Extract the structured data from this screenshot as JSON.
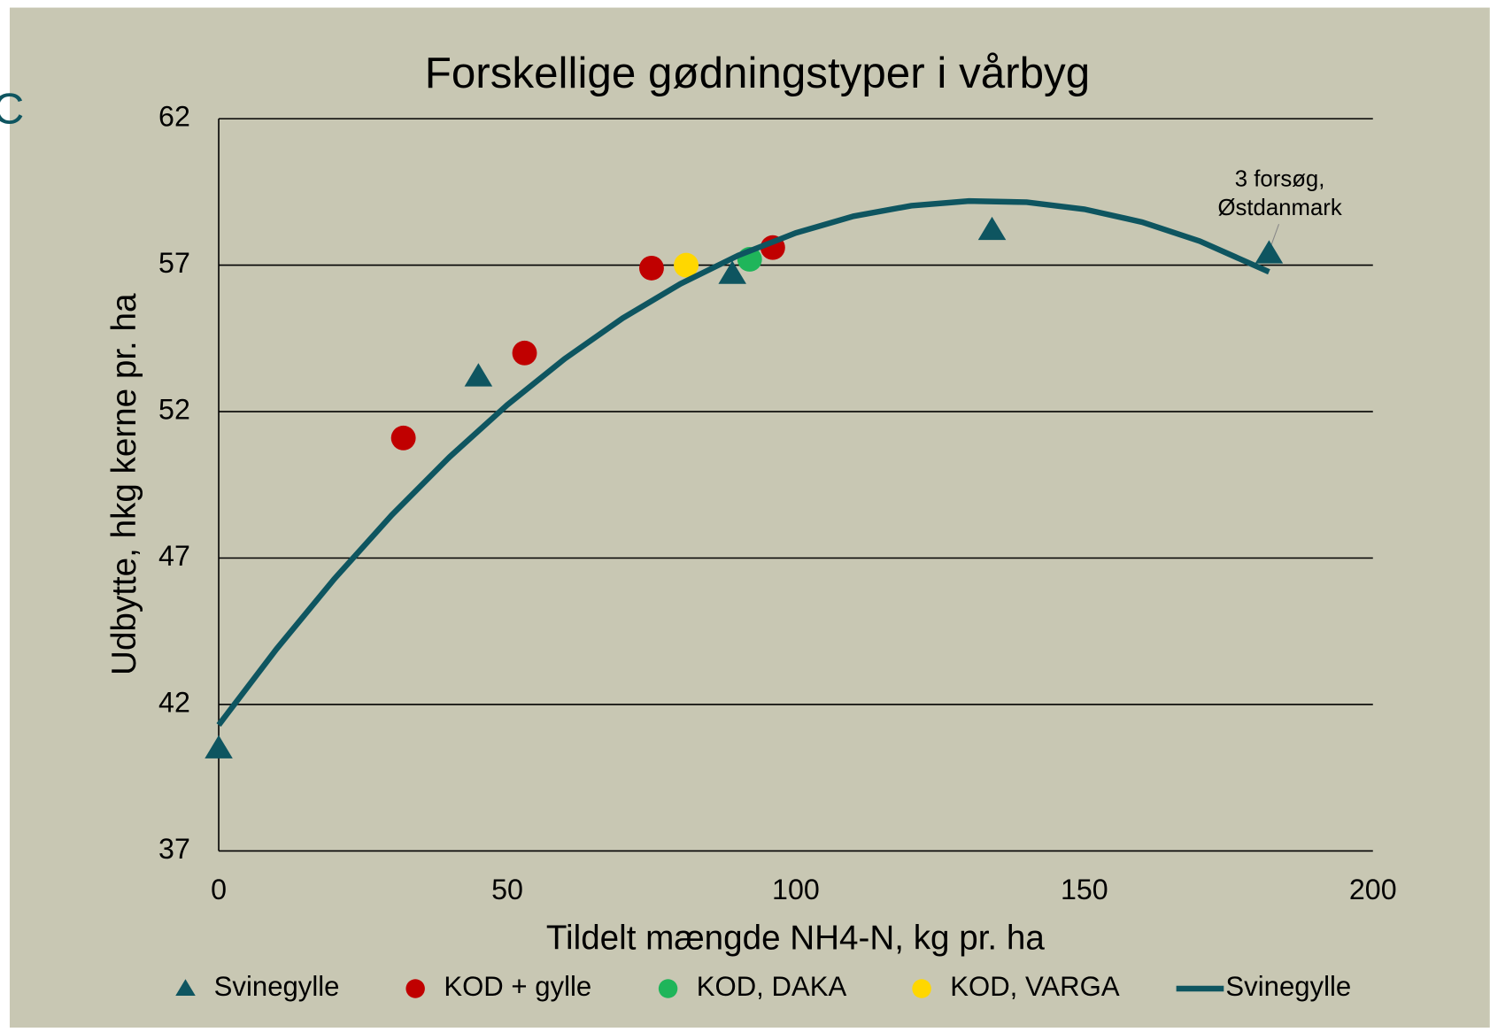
{
  "chart_data": {
    "type": "scatter",
    "title": "Forskellige gødningstyper i vårbyg",
    "x_label": "Tildelt mængde NH4-N, kg pr. ha",
    "y_label": "Udbytte, hkg kerne pr. ha",
    "annotation": [
      "3 forsøg,",
      "Østdanmark"
    ],
    "background_text": "C",
    "xlim": [
      0,
      200
    ],
    "xticks": [
      0,
      50,
      100,
      150,
      200
    ],
    "ylim": [
      37,
      62
    ],
    "yticks": [
      37,
      42,
      47,
      52,
      57,
      62
    ],
    "grid": true,
    "legend": "bottom",
    "series": [
      {
        "name": "Svinegylle",
        "color": "#0e5560",
        "marker": "triangle",
        "x": [
          0,
          45,
          89,
          134,
          182
        ],
        "values": [
          40.5,
          53.2,
          56.7,
          58.2,
          57.4
        ]
      },
      {
        "name": "KOD + gylle",
        "color": "#c00000",
        "marker": "circle",
        "x": [
          32,
          53,
          75,
          96
        ],
        "values": [
          51.1,
          54.0,
          56.9,
          57.6
        ]
      },
      {
        "name": "KOD, DAKA",
        "color": "#1fb55a",
        "marker": "circle",
        "x": [
          92
        ],
        "values": [
          57.2
        ]
      },
      {
        "name": "KOD, VARGA",
        "color": "#ffd700",
        "marker": "circle",
        "x": [
          81
        ],
        "values": [
          57.0
        ]
      },
      {
        "name": "Svinegylle",
        "color": "#0e5560",
        "marker": "line",
        "x": [
          0,
          10,
          20,
          30,
          40,
          50,
          60,
          70,
          80,
          90,
          100,
          110,
          120,
          130,
          140,
          150,
          160,
          170,
          182
        ],
        "values": [
          41.3,
          43.89,
          46.28,
          48.47,
          50.45,
          52.23,
          53.81,
          55.19,
          56.36,
          57.33,
          58.1,
          58.67,
          59.03,
          59.19,
          59.15,
          58.91,
          58.47,
          57.82,
          56.77
        ]
      }
    ]
  }
}
